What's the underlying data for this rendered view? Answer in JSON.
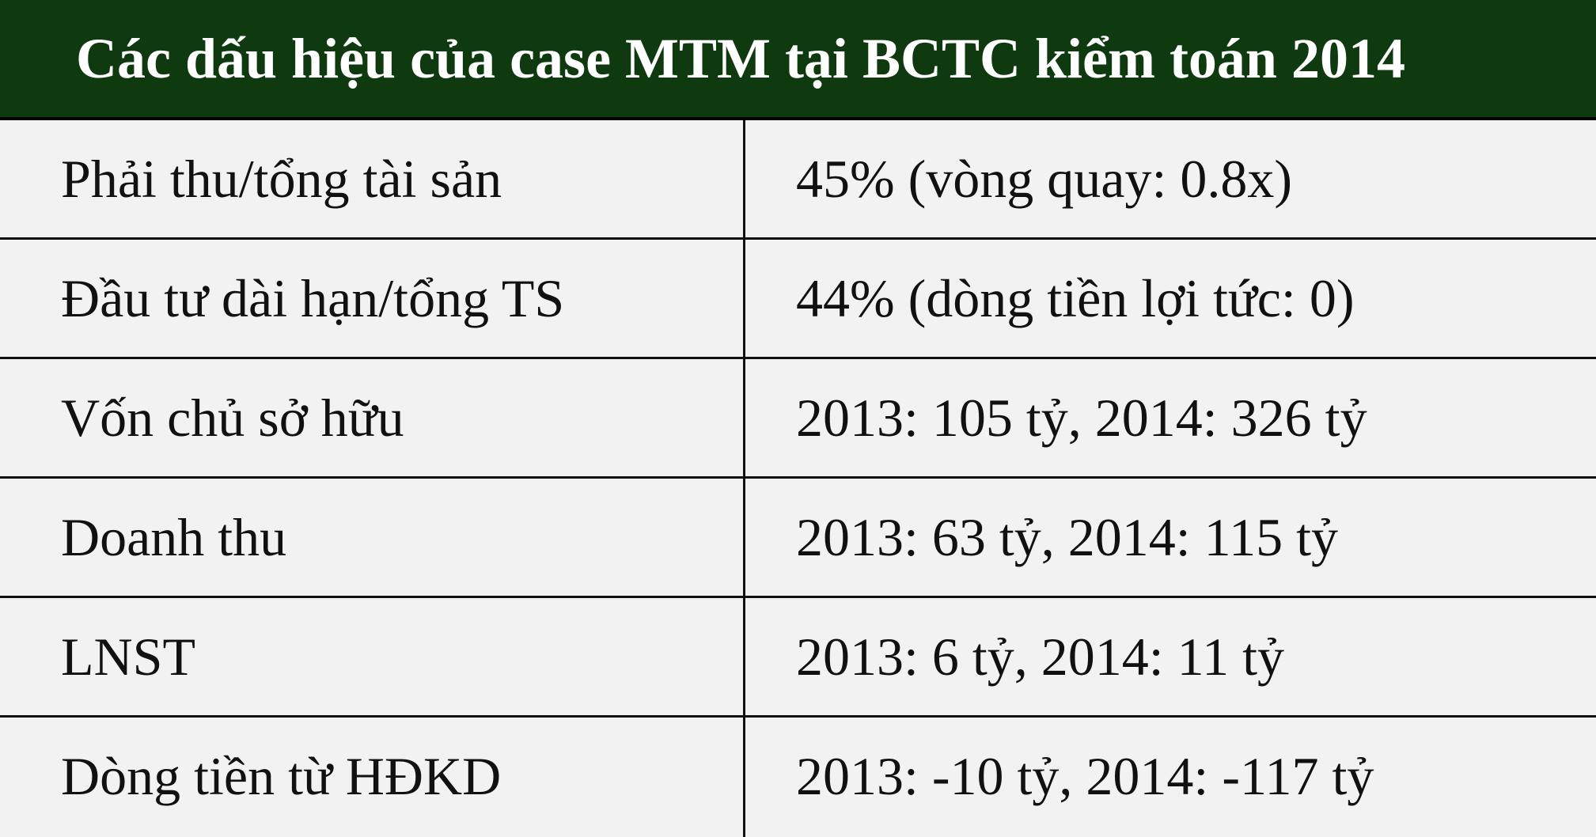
{
  "header": {
    "title": "Các dấu hiệu của case MTM tại BCTC kiểm toán 2014"
  },
  "table": {
    "rows": [
      [
        "Phải thu/tổng tài sản",
        "45% (vòng quay: 0.8x)"
      ],
      [
        "Đầu tư dài hạn/tổng TS",
        "44% (dòng tiền lợi tức: 0)"
      ],
      [
        "Vốn chủ sở hữu",
        "2013: 105 tỷ, 2014: 326 tỷ"
      ],
      [
        "Doanh thu",
        "2013: 63 tỷ, 2014: 115 tỷ"
      ],
      [
        "LNST",
        "2013: 6 tỷ, 2014: 11 tỷ"
      ],
      [
        "Dòng tiền từ HĐKD",
        "2013: -10 tỷ, 2014: -117 tỷ"
      ]
    ]
  }
}
